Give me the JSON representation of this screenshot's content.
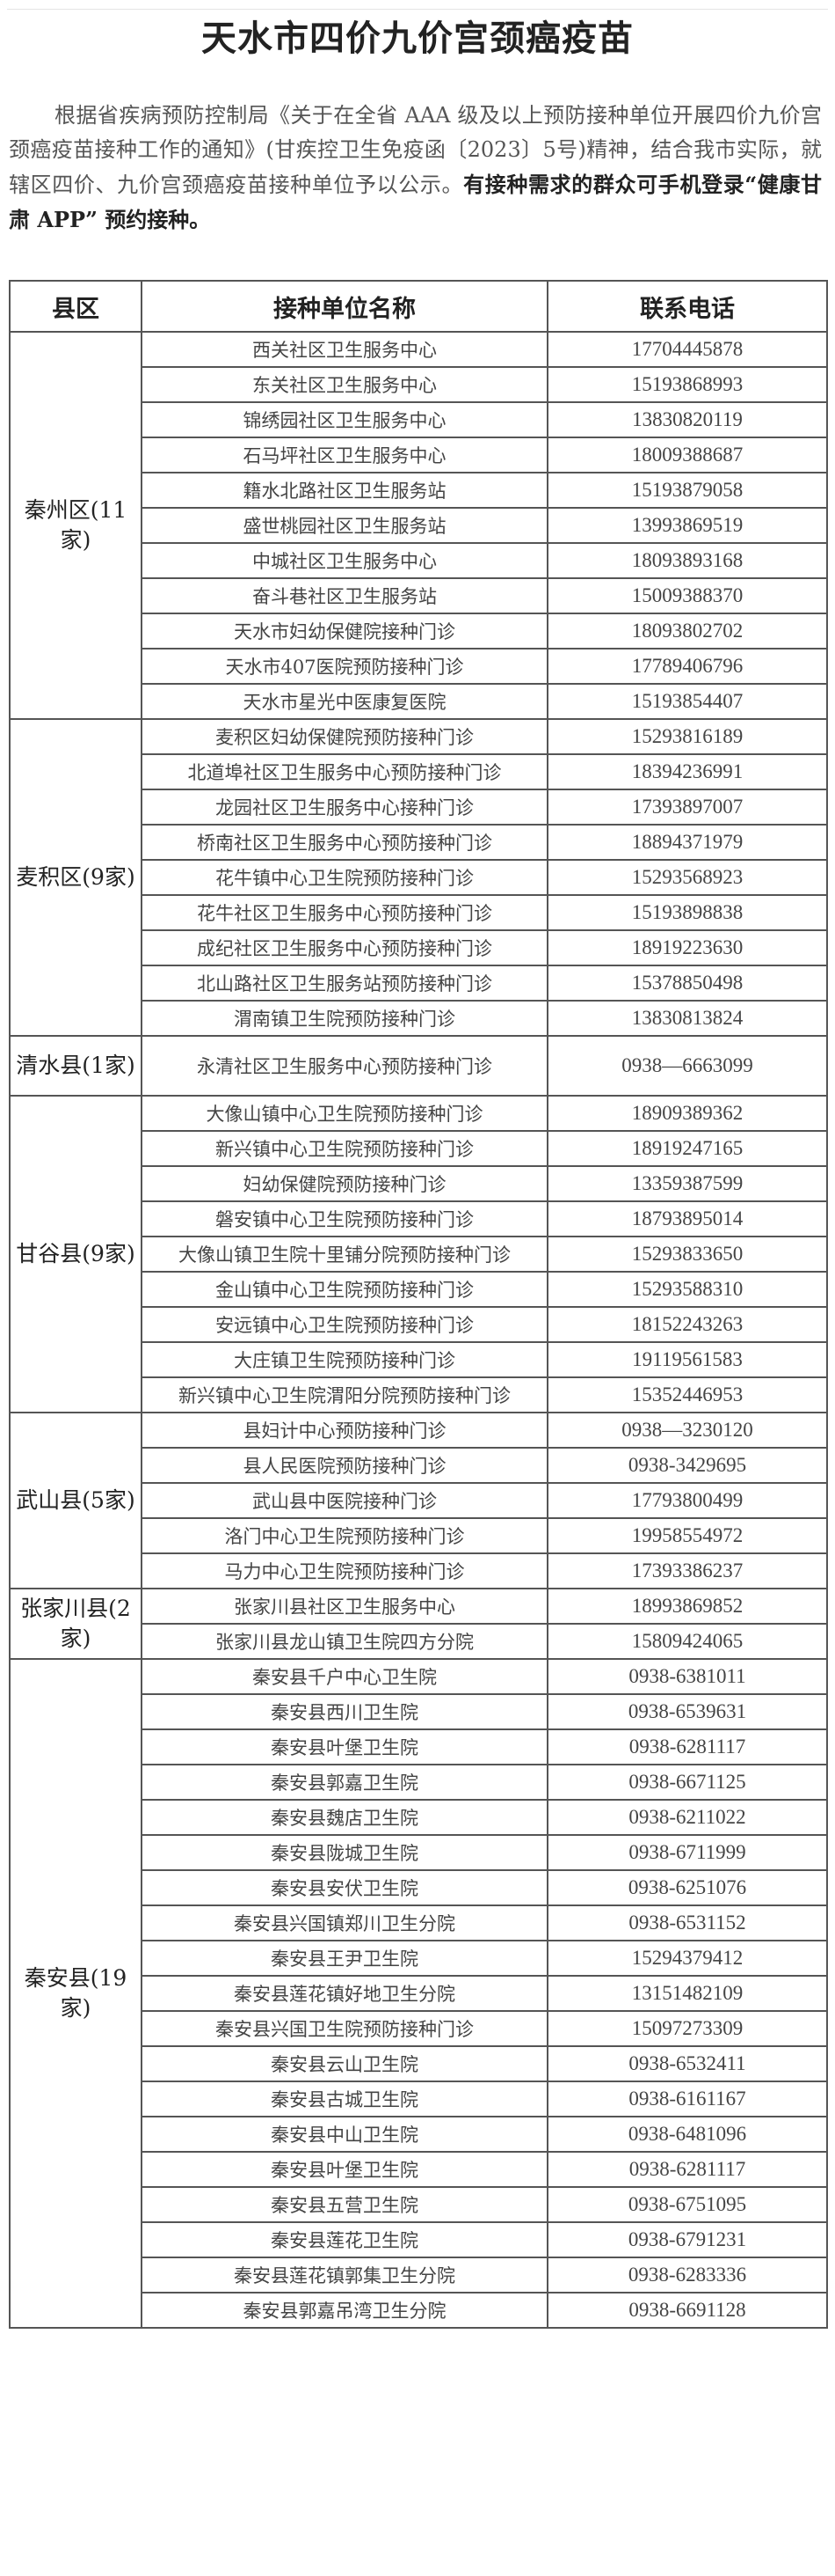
{
  "title": "天水市四价九价宫颈癌疫苗",
  "intro": {
    "text": "根据省疾病预防控制局《关于在全省 AAA 级及以上预防接种单位开展四价九价宫颈癌疫苗接种工作的通知》(甘疾控卫生免疫函〔2023〕5号)精神，结合我市实际，就辖区四价、九价宫颈癌疫苗接种单位予以公示。",
    "emphasis": "有接种需求的群众可手机登录“健康甘肃 APP” 预约接种。"
  },
  "table": {
    "headers": {
      "district": "县区",
      "unit": "接种单位名称",
      "phone": "联系电话"
    },
    "districts": [
      {
        "name": "秦州区(11家)",
        "units": [
          {
            "name": "西关社区卫生服务中心",
            "phone": "17704445878"
          },
          {
            "name": "东关社区卫生服务中心",
            "phone": "15193868993"
          },
          {
            "name": "锦绣园社区卫生服务中心",
            "phone": "13830820119"
          },
          {
            "name": "石马坪社区卫生服务中心",
            "phone": "18009388687"
          },
          {
            "name": "籍水北路社区卫生服务站",
            "phone": "15193879058"
          },
          {
            "name": "盛世桃园社区卫生服务站",
            "phone": "13993869519"
          },
          {
            "name": "中城社区卫生服务中心",
            "phone": "18093893168"
          },
          {
            "name": "奋斗巷社区卫生服务站",
            "phone": "15009388370"
          },
          {
            "name": "天水市妇幼保健院接种门诊",
            "phone": "18093802702"
          },
          {
            "name": "天水市407医院预防接种门诊",
            "phone": "17789406796"
          },
          {
            "name": "天水市星光中医康复医院",
            "phone": "15193854407"
          }
        ]
      },
      {
        "name": "麦积区(9家)",
        "units": [
          {
            "name": "麦积区妇幼保健院预防接种门诊",
            "phone": "15293816189"
          },
          {
            "name": "北道埠社区卫生服务中心预防接种门诊",
            "phone": "18394236991"
          },
          {
            "name": "龙园社区卫生服务中心接种门诊",
            "phone": "17393897007"
          },
          {
            "name": "桥南社区卫生服务中心预防接种门诊",
            "phone": "18894371979"
          },
          {
            "name": "花牛镇中心卫生院预防接种门诊",
            "phone": "15293568923"
          },
          {
            "name": "花牛社区卫生服务中心预防接种门诊",
            "phone": "15193898838"
          },
          {
            "name": "成纪社区卫生服务中心预防接种门诊",
            "phone": "18919223630"
          },
          {
            "name": "北山路社区卫生服务站预防接种门诊",
            "phone": "15378850498"
          },
          {
            "name": "渭南镇卫生院预防接种门诊",
            "phone": "13830813824"
          }
        ]
      },
      {
        "name": "清水县(1家)",
        "tall": true,
        "units": [
          {
            "name": "永清社区卫生服务中心预防接种门诊",
            "phone": "0938—6663099"
          }
        ]
      },
      {
        "name": "甘谷县(9家)",
        "units": [
          {
            "name": "大像山镇中心卫生院预防接种门诊",
            "phone": "18909389362"
          },
          {
            "name": "新兴镇中心卫生院预防接种门诊",
            "phone": "18919247165"
          },
          {
            "name": "妇幼保健院预防接种门诊",
            "phone": "13359387599"
          },
          {
            "name": "磐安镇中心卫生院预防接种门诊",
            "phone": "18793895014"
          },
          {
            "name": "大像山镇卫生院十里铺分院预防接种门诊",
            "phone": "15293833650"
          },
          {
            "name": "金山镇中心卫生院预防接种门诊",
            "phone": "15293588310"
          },
          {
            "name": "安远镇中心卫生院预防接种门诊",
            "phone": "18152243263"
          },
          {
            "name": "大庄镇卫生院预防接种门诊",
            "phone": "19119561583"
          },
          {
            "name": "新兴镇中心卫生院渭阳分院预防接种门诊",
            "phone": "15352446953"
          }
        ]
      },
      {
        "name": "武山县(5家)",
        "units": [
          {
            "name": "县妇计中心预防接种门诊",
            "phone": "0938—3230120"
          },
          {
            "name": "县人民医院预防接种门诊",
            "phone": "0938-3429695"
          },
          {
            "name": "武山县中医院接种门诊",
            "phone": "17793800499"
          },
          {
            "name": "洛门中心卫生院预防接种门诊",
            "phone": "19958554972"
          },
          {
            "name": "马力中心卫生院预防接种门诊",
            "phone": "17393386237"
          }
        ]
      },
      {
        "name": "张家川县(2家)",
        "units": [
          {
            "name": "张家川县社区卫生服务中心",
            "phone": "18993869852"
          },
          {
            "name": "张家川县龙山镇卫生院四方分院",
            "phone": "15809424065"
          }
        ]
      },
      {
        "name": "秦安县(19家)",
        "units": [
          {
            "name": "秦安县千户中心卫生院",
            "phone": "0938-6381011"
          },
          {
            "name": "秦安县西川卫生院",
            "phone": "0938-6539631"
          },
          {
            "name": "秦安县叶堡卫生院",
            "phone": "0938-6281117"
          },
          {
            "name": "秦安县郭嘉卫生院",
            "phone": "0938-6671125"
          },
          {
            "name": "秦安县魏店卫生院",
            "phone": "0938-6211022"
          },
          {
            "name": "秦安县陇城卫生院",
            "phone": "0938-6711999"
          },
          {
            "name": "秦安县安伏卫生院",
            "phone": "0938-6251076"
          },
          {
            "name": "秦安县兴国镇郑川卫生分院",
            "phone": "0938-6531152"
          },
          {
            "name": "秦安县王尹卫生院",
            "phone": "15294379412"
          },
          {
            "name": "秦安县莲花镇好地卫生分院",
            "phone": "13151482109"
          },
          {
            "name": "秦安县兴国卫生院预防接种门诊",
            "phone": "15097273309"
          },
          {
            "name": "秦安县云山卫生院",
            "phone": "0938-6532411"
          },
          {
            "name": "秦安县古城卫生院",
            "phone": "0938-6161167"
          },
          {
            "name": "秦安县中山卫生院",
            "phone": "0938-6481096"
          },
          {
            "name": "秦安县叶堡卫生院",
            "phone": "0938-6281117"
          },
          {
            "name": "秦安县五营卫生院",
            "phone": "0938-6751095"
          },
          {
            "name": "秦安县莲花卫生院",
            "phone": "0938-6791231"
          },
          {
            "name": "秦安县莲花镇郭集卫生分院",
            "phone": "0938-6283336"
          },
          {
            "name": "秦安县郭嘉吊湾卫生分院",
            "phone": "0938-6691128"
          }
        ]
      }
    ]
  }
}
